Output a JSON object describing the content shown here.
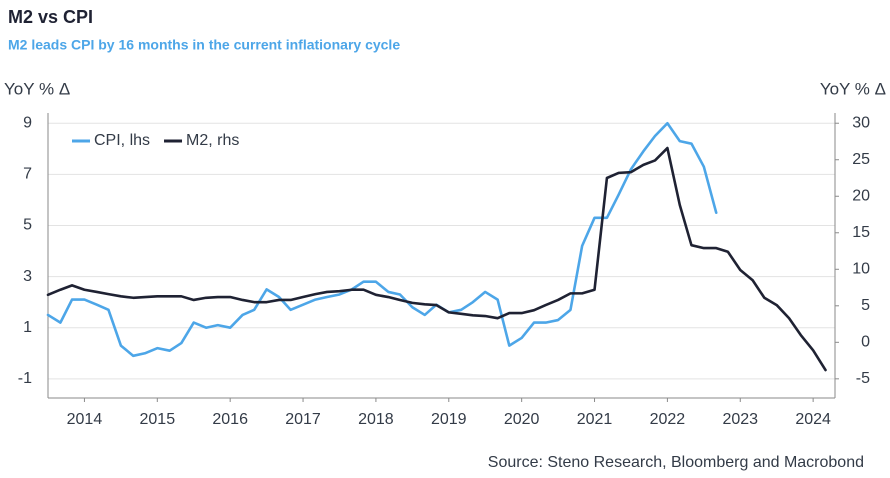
{
  "chart_data": {
    "type": "line",
    "title": "M2 vs CPI",
    "subtitle": "M2 leads CPI by 16 months in the current inflationary cycle",
    "ylabel": "YoY % Δ",
    "y2label": "YoY % Δ",
    "source": "Source: Steno Research, Bloomberg and Macrobond",
    "legend": "upper left",
    "grid": true,
    "xlim": [
      2014,
      2024.8
    ],
    "xticks": [
      {
        "value": 2014.5,
        "label": "2014"
      },
      {
        "value": 2015.5,
        "label": "2015"
      },
      {
        "value": 2016.5,
        "label": "2016"
      },
      {
        "value": 2017.5,
        "label": "2017"
      },
      {
        "value": 2018.5,
        "label": "2018"
      },
      {
        "value": 2019.5,
        "label": "2019"
      },
      {
        "value": 2020.5,
        "label": "2020"
      },
      {
        "value": 2021.5,
        "label": "2021"
      },
      {
        "value": 2022.5,
        "label": "2022"
      },
      {
        "value": 2023.5,
        "label": "2023"
      },
      {
        "value": 2024.5,
        "label": "2024"
      }
    ],
    "ylim": [
      -1.75,
      9.4
    ],
    "yticks": [
      9,
      7,
      5,
      3,
      1,
      -1
    ],
    "y2lim": [
      -7.625,
      31.4
    ],
    "y2ticks": [
      30,
      25,
      20,
      15,
      10,
      5,
      0,
      -5
    ],
    "x": [
      2014,
      2014.17,
      2014.33,
      2014.5,
      2014.67,
      2014.83,
      2015,
      2015.17,
      2015.33,
      2015.5,
      2015.67,
      2015.83,
      2016,
      2016.17,
      2016.33,
      2016.5,
      2016.67,
      2016.83,
      2017,
      2017.17,
      2017.33,
      2017.5,
      2017.67,
      2017.83,
      2018,
      2018.17,
      2018.33,
      2018.5,
      2018.67,
      2018.83,
      2019,
      2019.17,
      2019.33,
      2019.5,
      2019.67,
      2019.83,
      2020,
      2020.17,
      2020.33,
      2020.5,
      2020.67,
      2020.83,
      2021,
      2021.17,
      2021.33,
      2021.5,
      2021.67,
      2021.83,
      2022,
      2022.17,
      2022.33,
      2022.5,
      2022.67,
      2022.83,
      2023,
      2023.17,
      2023.33,
      2023.5,
      2023.67,
      2023.83,
      2024,
      2024.17,
      2024.33,
      2024.5,
      2024.67
    ],
    "series": [
      {
        "name": "CPI, lhs",
        "color": "#4da6e8",
        "axis": "y",
        "values": [
          1.5,
          1.2,
          2.1,
          2.1,
          1.9,
          1.7,
          0.3,
          -0.1,
          0.0,
          0.2,
          0.1,
          0.4,
          1.2,
          1.0,
          1.1,
          1.0,
          1.5,
          1.7,
          2.5,
          2.2,
          1.7,
          1.9,
          2.1,
          2.2,
          2.3,
          2.5,
          2.8,
          2.8,
          2.4,
          2.3,
          1.8,
          1.5,
          1.9,
          1.6,
          1.7,
          2.0,
          2.4,
          2.1,
          0.3,
          0.6,
          1.2,
          1.2,
          1.3,
          1.7,
          4.2,
          5.3,
          5.3,
          6.2,
          7.2,
          7.9,
          8.5,
          9.0,
          8.3,
          8.2,
          7.3,
          5.5,
          null,
          null,
          null,
          null,
          null,
          null,
          null,
          null,
          null
        ]
      },
      {
        "name": "M2, rhs",
        "color": "#1f2233",
        "axis": "y2",
        "values": [
          6.5,
          7.2,
          7.8,
          7.2,
          6.9,
          6.6,
          6.3,
          6.1,
          6.2,
          6.3,
          6.3,
          6.3,
          5.8,
          6.1,
          6.2,
          6.2,
          5.8,
          5.5,
          5.5,
          5.8,
          5.8,
          6.2,
          6.6,
          6.9,
          7.0,
          7.2,
          7.2,
          6.5,
          6.2,
          5.8,
          5.4,
          5.2,
          5.1,
          4.1,
          3.9,
          3.7,
          3.6,
          3.3,
          4.0,
          4.0,
          4.4,
          5.1,
          5.8,
          6.7,
          6.7,
          7.2,
          22.5,
          23.2,
          23.3,
          24.3,
          24.9,
          26.6,
          18.8,
          13.3,
          12.9,
          12.9,
          12.4,
          9.9,
          8.5,
          6.1,
          5.1,
          3.3,
          1.0,
          -1.1,
          -3.8
        ]
      }
    ]
  }
}
